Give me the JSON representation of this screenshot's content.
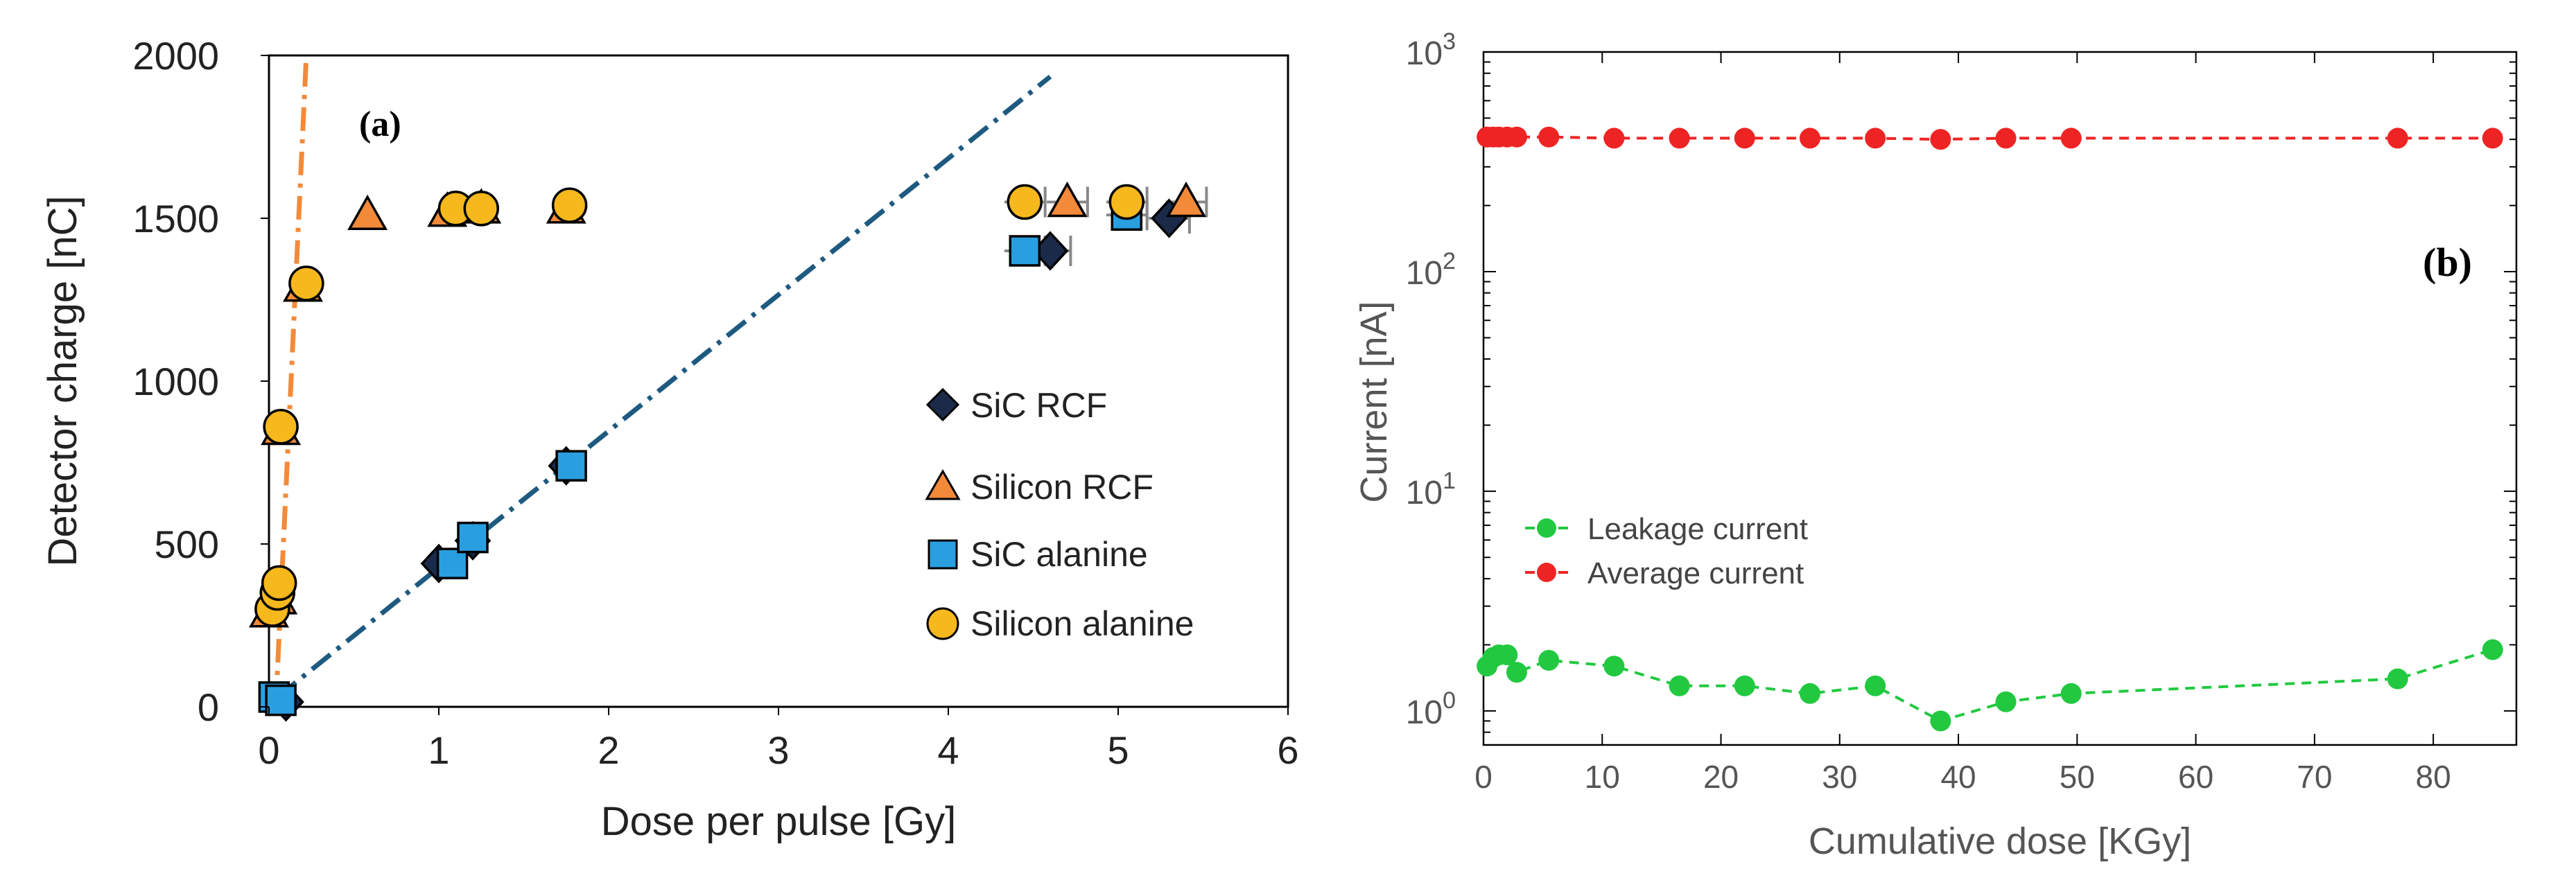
{
  "chart_data": [
    {
      "type": "scatter",
      "panel_label": "(a)",
      "xlabel": "Dose per pulse [Gy]",
      "ylabel": "Detector charge [nC]",
      "xlim": [
        0,
        6
      ],
      "ylim": [
        0,
        2000
      ],
      "x_ticks": [
        "0",
        "1",
        "2",
        "3",
        "4",
        "5",
        "6"
      ],
      "y_ticks": [
        "0",
        "500",
        "1000",
        "1500",
        "2000"
      ],
      "legend_position": "center-right",
      "series": [
        {
          "name": "SiC RCF",
          "marker": "diamond",
          "color": "#1c2a4a",
          "points": [
            [
              0.1,
              15
            ],
            [
              1.0,
              440
            ],
            [
              1.2,
              510
            ],
            [
              1.75,
              740
            ],
            [
              4.6,
              1400
            ],
            [
              5.3,
              1500
            ]
          ]
        },
        {
          "name": "Silicon RCF",
          "marker": "triangle",
          "color": "#f28a3a",
          "points": [
            [
              0.0,
              290
            ],
            [
              0.05,
              330
            ],
            [
              0.07,
              850
            ],
            [
              0.2,
              1290
            ],
            [
              0.58,
              1510
            ],
            [
              1.05,
              1520
            ],
            [
              1.25,
              1530
            ],
            [
              1.75,
              1530
            ],
            [
              4.7,
              1550
            ],
            [
              5.4,
              1550
            ]
          ]
        },
        {
          "name": "SiC alanine",
          "marker": "square",
          "color": "#2a9fe0",
          "points": [
            [
              0.03,
              30
            ],
            [
              0.07,
              20
            ],
            [
              1.08,
              440
            ],
            [
              1.2,
              520
            ],
            [
              1.78,
              740
            ],
            [
              4.45,
              1400
            ],
            [
              5.05,
              1510
            ]
          ]
        },
        {
          "name": "Silicon alanine",
          "marker": "circle",
          "color": "#f6b81c",
          "points": [
            [
              0.02,
              300
            ],
            [
              0.05,
              350
            ],
            [
              0.06,
              380
            ],
            [
              0.07,
              860
            ],
            [
              0.22,
              1300
            ],
            [
              1.1,
              1530
            ],
            [
              1.25,
              1530
            ],
            [
              1.77,
              1540
            ],
            [
              4.45,
              1550
            ],
            [
              5.05,
              1550
            ]
          ]
        }
      ],
      "fit_lines": [
        {
          "name": "silicon-fit",
          "color": "#f28a3a",
          "points": [
            [
              0.04,
              0
            ],
            [
              0.22,
              2000
            ]
          ]
        },
        {
          "name": "sic-fit",
          "color": "#1e5a80",
          "points": [
            [
              0.05,
              30
            ],
            [
              4.6,
              1935
            ]
          ]
        }
      ],
      "error_bar_half_width": 0.12,
      "error_bar_color": "#888888"
    },
    {
      "type": "line",
      "panel_label": "(b)",
      "xlabel": "Cumulative dose [KGy]",
      "ylabel": "Current [nA]",
      "xlim": [
        0,
        87
      ],
      "ylim": [
        0.7,
        1000
      ],
      "yscale": "log",
      "x_ticks": [
        "0",
        "10",
        "20",
        "30",
        "40",
        "50",
        "60",
        "70",
        "80"
      ],
      "y_ticks": [
        {
          "base": "10",
          "exp": "0",
          "value": 1
        },
        {
          "base": "10",
          "exp": "1",
          "value": 10
        },
        {
          "base": "10",
          "exp": "2",
          "value": 100
        },
        {
          "base": "10",
          "exp": "3",
          "value": 1000
        }
      ],
      "legend_position": "lower-left",
      "series": [
        {
          "name": "Leakage current",
          "color": "#22c940",
          "x": [
            0.3,
            0.8,
            1.3,
            2.0,
            2.8,
            5.5,
            11,
            16.5,
            22,
            27.5,
            33,
            38.5,
            44,
            49.5,
            77,
            85
          ],
          "y": [
            1.6,
            1.75,
            1.8,
            1.8,
            1.5,
            1.7,
            1.6,
            1.3,
            1.3,
            1.2,
            1.3,
            0.9,
            1.1,
            1.2,
            1.4,
            1.9
          ]
        },
        {
          "name": "Average current",
          "color": "#ee2424",
          "x": [
            0.3,
            0.8,
            1.3,
            2.0,
            2.8,
            5.5,
            11,
            16.5,
            22,
            27.5,
            33,
            38.5,
            44,
            49.5,
            77,
            85
          ],
          "y": [
            410,
            410,
            410,
            410,
            410,
            410,
            405,
            405,
            405,
            405,
            405,
            400,
            405,
            405,
            405,
            405
          ]
        }
      ]
    }
  ]
}
